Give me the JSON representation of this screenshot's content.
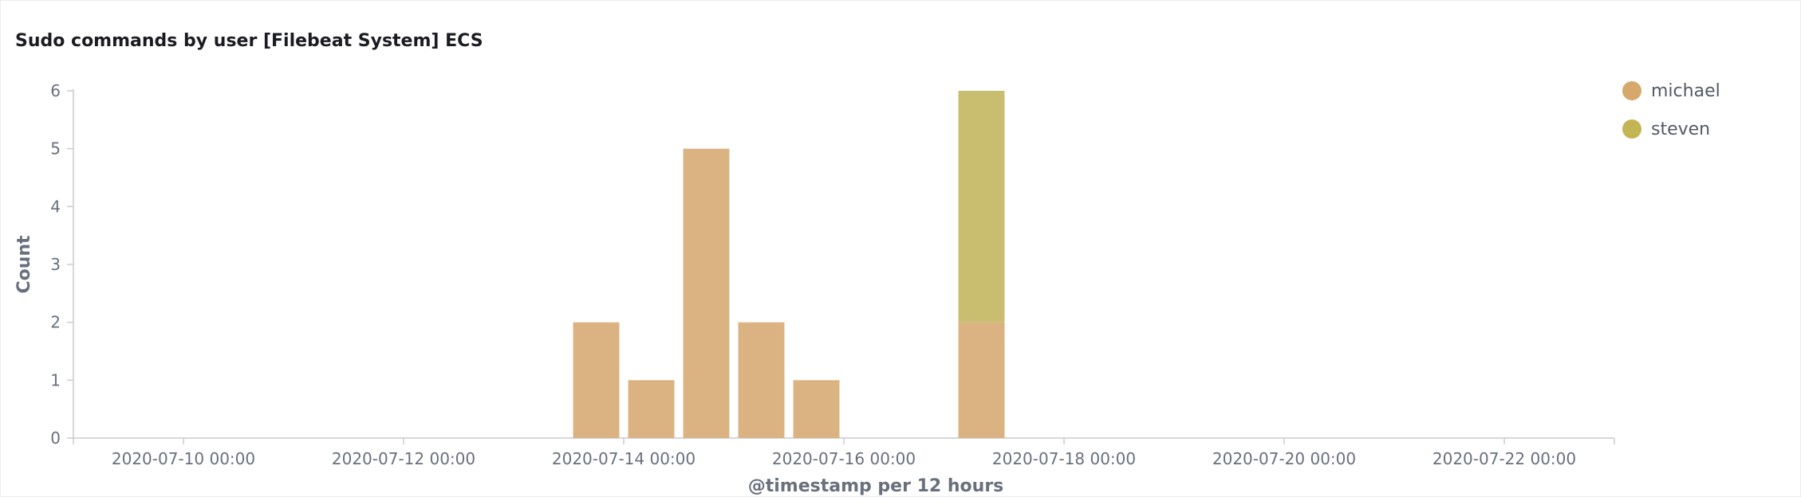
{
  "panel": {
    "title": "Sudo commands by user [Filebeat System] ECS"
  },
  "chart_data": {
    "type": "bar",
    "stacked": true,
    "title": "Sudo commands by user [Filebeat System] ECS",
    "xlabel": "@timestamp per 12 hours",
    "ylabel": "Count",
    "ylim": [
      0,
      6
    ],
    "y_ticks": [
      0,
      1,
      2,
      3,
      4,
      5,
      6
    ],
    "x_range": [
      "2020-07-09 00:00",
      "2020-07-23 00:00"
    ],
    "interval": "12 hours",
    "x_ticks": [
      "2020-07-10 00:00",
      "2020-07-12 00:00",
      "2020-07-14 00:00",
      "2020-07-16 00:00",
      "2020-07-18 00:00",
      "2020-07-20 00:00",
      "2020-07-22 00:00"
    ],
    "x": [
      "2020-07-13 12:00",
      "2020-07-14 00:00",
      "2020-07-14 12:00",
      "2020-07-15 00:00",
      "2020-07-15 12:00",
      "2020-07-17 00:00"
    ],
    "series": [
      {
        "name": "michael",
        "color": "#dbb383",
        "values": [
          2,
          1,
          5,
          2,
          1,
          2
        ]
      },
      {
        "name": "steven",
        "color": "#c9be70",
        "values": [
          0,
          0,
          0,
          0,
          0,
          4
        ]
      }
    ],
    "legend_position": "top-right",
    "grid": false
  },
  "legend_colors": {
    "michael": "#d6a86c",
    "steven": "#c3b553"
  }
}
